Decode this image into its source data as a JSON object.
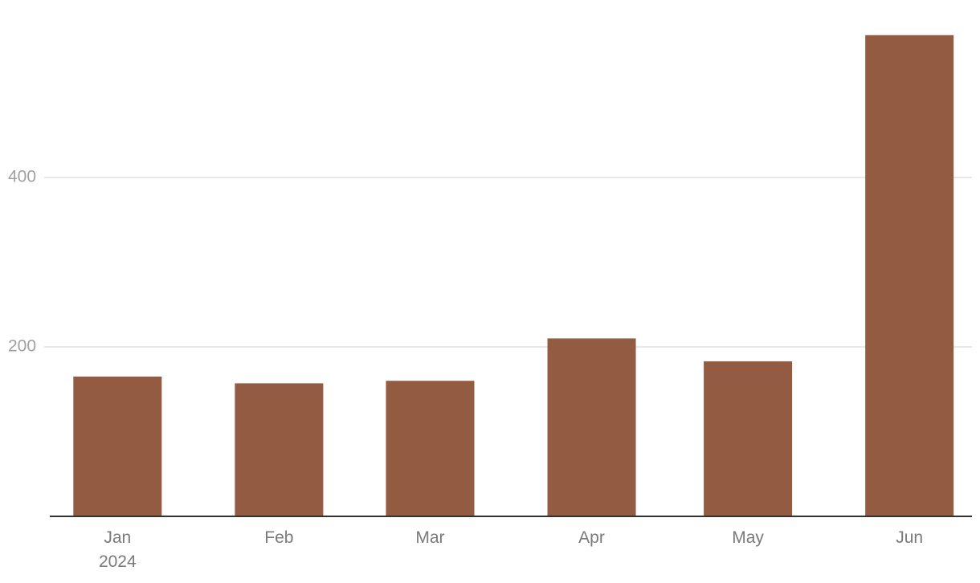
{
  "chart_data": {
    "type": "bar",
    "x": [
      "2024-01-01",
      "2024-02-01",
      "2024-03-01",
      "2024-04-01",
      "2024-05-01",
      "2024-06-01"
    ],
    "values": [
      165,
      157,
      160,
      210,
      183,
      568
    ],
    "color": "#935b41",
    "xlim": [
      "2023-12-19",
      "2024-06-13"
    ],
    "xticks": [
      {
        "value": "2024-01-01",
        "label": "Jan\n2024"
      },
      {
        "value": "2024-02-01",
        "label": "Feb"
      },
      {
        "value": "2024-03-01",
        "label": "Mar"
      },
      {
        "value": "2024-04-01",
        "label": "Apr"
      },
      {
        "value": "2024-05-01",
        "label": "May"
      },
      {
        "value": "2024-06-01",
        "label": "Jun"
      }
    ],
    "ylim": [
      0,
      600
    ],
    "yticks": [
      200,
      400
    ],
    "grid": true
  }
}
